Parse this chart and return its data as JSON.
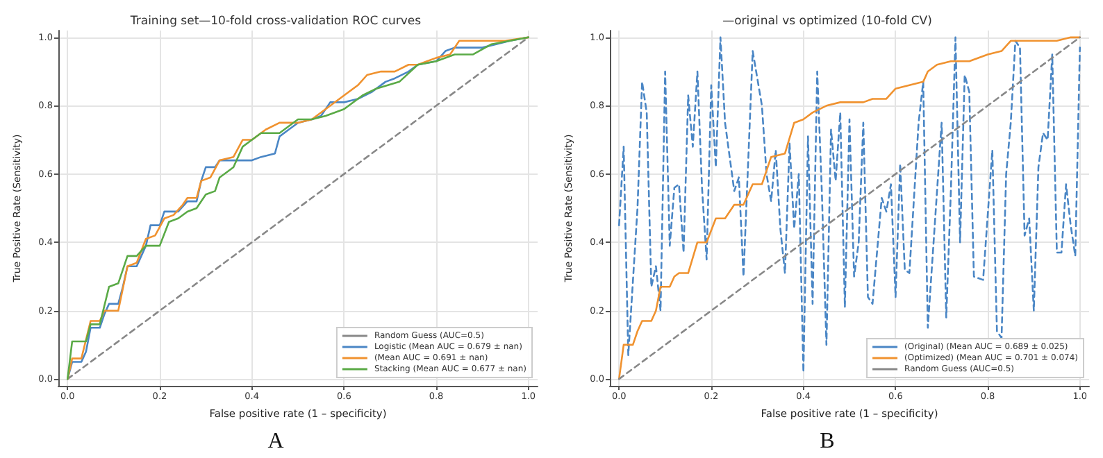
{
  "chart_data": [
    {
      "type": "line",
      "title": "Training set—10-fold cross-validation ROC curves",
      "xlabel": "False positive rate (1 – specificity)",
      "ylabel": "True Positive Rate (Sensitivity)",
      "annotations": [
        "A"
      ],
      "xlim": [
        -0.02,
        1.02
      ],
      "ylim": [
        -0.02,
        1.02
      ],
      "xticks": [
        {
          "value": 0,
          "label": "0.0"
        },
        {
          "value": 0.2,
          "label": "0.2"
        },
        {
          "value": 0.4,
          "label": "0.4"
        },
        {
          "value": 0.6,
          "label": "0.6"
        },
        {
          "value": 0.8,
          "label": "0.8"
        },
        {
          "value": 1,
          "label": "1.0"
        }
      ],
      "yticks": [
        {
          "value": 0,
          "label": "0.0"
        },
        {
          "value": 0.2,
          "label": "0.2"
        },
        {
          "value": 0.4,
          "label": "0.4"
        },
        {
          "value": 0.6,
          "label": "0.6"
        },
        {
          "value": 0.8,
          "label": "0.8"
        },
        {
          "value": 1,
          "label": "1.0"
        }
      ],
      "grid": true,
      "legend": "bottom right",
      "marker": "none",
      "series": [
        {
          "name": "Random Guess (AUC=0.5)",
          "color": "#888888",
          "line_style": "dashed",
          "x": [
            0,
            1
          ],
          "values": [
            0,
            1
          ]
        },
        {
          "name": "Logistic (Mean AUC = 0.679 ± nan)",
          "color": "#4a86c5",
          "x": [
            0,
            0.01,
            0.03,
            0.04,
            0.05,
            0.07,
            0.08,
            0.09,
            0.11,
            0.12,
            0.13,
            0.15,
            0.17,
            0.18,
            0.2,
            0.21,
            0.24,
            0.26,
            0.28,
            0.29,
            0.3,
            0.32,
            0.33,
            0.38,
            0.4,
            0.42,
            0.45,
            0.46,
            0.48,
            0.5,
            0.53,
            0.55,
            0.57,
            0.6,
            0.63,
            0.66,
            0.69,
            0.71,
            0.74,
            0.76,
            0.8,
            0.82,
            0.84,
            0.9,
            0.96,
            1
          ],
          "values": [
            0,
            0.05,
            0.05,
            0.08,
            0.15,
            0.15,
            0.19,
            0.22,
            0.22,
            0.27,
            0.33,
            0.33,
            0.39,
            0.45,
            0.45,
            0.49,
            0.49,
            0.52,
            0.52,
            0.58,
            0.62,
            0.62,
            0.64,
            0.64,
            0.64,
            0.65,
            0.66,
            0.71,
            0.73,
            0.75,
            0.76,
            0.77,
            0.81,
            0.81,
            0.82,
            0.84,
            0.87,
            0.88,
            0.9,
            0.92,
            0.93,
            0.96,
            0.97,
            0.97,
            0.99,
            1
          ]
        },
        {
          "name": "(Mean AUC = 0.691 ± nan)",
          "color": "#f0922f",
          "x": [
            0,
            0.01,
            0.03,
            0.05,
            0.07,
            0.08,
            0.11,
            0.13,
            0.15,
            0.17,
            0.19,
            0.21,
            0.23,
            0.25,
            0.26,
            0.28,
            0.29,
            0.31,
            0.33,
            0.36,
            0.38,
            0.4,
            0.43,
            0.46,
            0.5,
            0.53,
            0.56,
            0.6,
            0.63,
            0.65,
            0.68,
            0.71,
            0.74,
            0.76,
            0.78,
            0.8,
            0.83,
            0.85,
            0.9,
            0.95,
            1
          ],
          "values": [
            0,
            0.06,
            0.06,
            0.17,
            0.17,
            0.2,
            0.2,
            0.33,
            0.34,
            0.41,
            0.42,
            0.47,
            0.48,
            0.51,
            0.53,
            0.53,
            0.58,
            0.59,
            0.64,
            0.65,
            0.7,
            0.7,
            0.73,
            0.75,
            0.75,
            0.76,
            0.79,
            0.83,
            0.86,
            0.89,
            0.9,
            0.9,
            0.92,
            0.92,
            0.93,
            0.94,
            0.95,
            0.99,
            0.99,
            0.99,
            1
          ]
        },
        {
          "name": "Stacking (Mean AUC = 0.677 ± nan)",
          "color": "#5aaa46",
          "x": [
            0,
            0.01,
            0.04,
            0.05,
            0.07,
            0.09,
            0.11,
            0.13,
            0.15,
            0.17,
            0.2,
            0.22,
            0.24,
            0.26,
            0.28,
            0.3,
            0.32,
            0.33,
            0.36,
            0.38,
            0.4,
            0.42,
            0.46,
            0.5,
            0.53,
            0.56,
            0.6,
            0.64,
            0.67,
            0.72,
            0.76,
            0.8,
            0.84,
            0.88,
            0.92,
            1
          ],
          "values": [
            0,
            0.11,
            0.11,
            0.16,
            0.16,
            0.27,
            0.28,
            0.36,
            0.36,
            0.39,
            0.39,
            0.46,
            0.47,
            0.49,
            0.5,
            0.54,
            0.55,
            0.59,
            0.62,
            0.68,
            0.7,
            0.72,
            0.72,
            0.76,
            0.76,
            0.77,
            0.79,
            0.83,
            0.85,
            0.87,
            0.92,
            0.93,
            0.95,
            0.95,
            0.98,
            1
          ]
        }
      ]
    },
    {
      "type": "line",
      "title": "—original vs optimized (10-fold CV)",
      "xlabel": "False positive rate (1 – specificity)",
      "ylabel": "True Positive Rate (Sensitivity)",
      "annotations": [
        "B"
      ],
      "xlim": [
        -0.02,
        1.02
      ],
      "ylim": [
        -0.02,
        1.02
      ],
      "xticks": [
        {
          "value": 0,
          "label": "0.0"
        },
        {
          "value": 0.2,
          "label": "0.2"
        },
        {
          "value": 0.4,
          "label": "0.4"
        },
        {
          "value": 0.6,
          "label": "0.6"
        },
        {
          "value": 0.8,
          "label": "0.8"
        },
        {
          "value": 1,
          "label": "1.0"
        }
      ],
      "yticks": [
        {
          "value": 0,
          "label": "0.0"
        },
        {
          "value": 0.2,
          "label": "0.2"
        },
        {
          "value": 0.4,
          "label": "0.4"
        },
        {
          "value": 0.6,
          "label": "0.6"
        },
        {
          "value": 0.8,
          "label": "0.8"
        },
        {
          "value": 1,
          "label": "1.0"
        }
      ],
      "grid": true,
      "legend": "bottom right",
      "marker": "none",
      "series": [
        {
          "name": "(Original) (Mean AUC = 0.689 ± 0.025)",
          "color": "#4a86c5",
          "line_style": "dashed",
          "x": [
            0,
            0.01,
            0.02,
            0.04,
            0.05,
            0.06,
            0.07,
            0.08,
            0.09,
            0.1,
            0.11,
            0.12,
            0.13,
            0.14,
            0.15,
            0.16,
            0.17,
            0.18,
            0.19,
            0.2,
            0.21,
            0.22,
            0.23,
            0.25,
            0.26,
            0.27,
            0.29,
            0.31,
            0.32,
            0.33,
            0.34,
            0.35,
            0.36,
            0.37,
            0.38,
            0.39,
            0.4,
            0.41,
            0.42,
            0.43,
            0.44,
            0.45,
            0.46,
            0.47,
            0.48,
            0.49,
            0.5,
            0.51,
            0.52,
            0.53,
            0.54,
            0.55,
            0.56,
            0.57,
            0.58,
            0.59,
            0.6,
            0.61,
            0.62,
            0.63,
            0.65,
            0.66,
            0.67,
            0.68,
            0.69,
            0.7,
            0.71,
            0.72,
            0.73,
            0.74,
            0.75,
            0.76,
            0.77,
            0.78,
            0.79,
            0.8,
            0.81,
            0.82,
            0.83,
            0.84,
            0.85,
            0.86,
            0.87,
            0.88,
            0.89,
            0.9,
            0.91,
            0.92,
            0.93,
            0.94,
            0.95,
            0.96,
            0.97,
            0.98,
            0.99,
            1
          ],
          "values": [
            0.45,
            0.68,
            0.07,
            0.5,
            0.87,
            0.78,
            0.27,
            0.33,
            0.2,
            0.9,
            0.39,
            0.56,
            0.57,
            0.37,
            0.83,
            0.68,
            0.9,
            0.56,
            0.35,
            0.86,
            0.62,
            1,
            0.75,
            0.55,
            0.59,
            0.3,
            0.96,
            0.8,
            0.6,
            0.52,
            0.67,
            0.44,
            0.31,
            0.69,
            0.44,
            0.6,
            0.02,
            0.71,
            0.22,
            0.9,
            0.55,
            0.1,
            0.73,
            0.58,
            0.78,
            0.21,
            0.76,
            0.3,
            0.4,
            0.75,
            0.24,
            0.22,
            null,
            0.53,
            0.49,
            0.57,
            0.24,
            0.63,
            0.32,
            0.31,
            0.75,
            0.87,
            0.15,
            null,
            null,
            0.75,
            0.18,
            0.55,
            1,
            0.4,
            0.89,
            0.84,
            0.3,
            null,
            0.29,
            null,
            0.67,
            0.14,
            0.12,
            0.6,
            0.75,
            0.99,
            0.97,
            0.42,
            0.47,
            0.2,
            0.62,
            0.72,
            0.7,
            0.95,
            0.37,
            0.37,
            0.57,
            0.45,
            0.36,
            0.97
          ]
        },
        {
          "name": "(Optimized) (Mean AUC = 0.701 ± 0.074)",
          "color": "#f0922f",
          "x": [
            0,
            0.01,
            0.03,
            0.04,
            0.05,
            0.07,
            0.08,
            0.09,
            0.11,
            0.12,
            0.13,
            0.15,
            0.17,
            0.19,
            0.21,
            0.23,
            0.25,
            0.27,
            0.29,
            0.31,
            0.33,
            0.36,
            0.38,
            0.4,
            0.42,
            0.45,
            0.48,
            0.53,
            0.55,
            0.58,
            0.6,
            0.63,
            0.66,
            0.67,
            0.69,
            0.72,
            0.76,
            0.8,
            0.83,
            0.85,
            0.9,
            0.95,
            0.98,
            1
          ],
          "values": [
            0,
            0.1,
            0.1,
            0.14,
            0.17,
            0.17,
            0.2,
            0.27,
            0.27,
            0.3,
            0.31,
            0.31,
            0.4,
            0.4,
            0.47,
            0.47,
            0.51,
            0.51,
            0.57,
            0.57,
            0.65,
            0.66,
            0.75,
            0.76,
            0.78,
            0.8,
            0.81,
            0.81,
            0.82,
            0.82,
            0.85,
            0.86,
            0.87,
            0.9,
            0.92,
            0.93,
            0.93,
            0.95,
            0.96,
            0.99,
            0.99,
            0.99,
            1,
            1
          ]
        },
        {
          "name": "Random Guess (AUC=0.5)",
          "color": "#888888",
          "line_style": "dashed",
          "x": [
            0,
            1
          ],
          "values": [
            0,
            1
          ]
        }
      ]
    }
  ]
}
